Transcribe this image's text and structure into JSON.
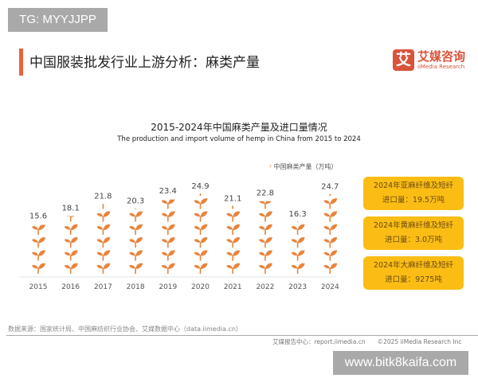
{
  "watermark_top": "TG: MYYJJPP",
  "page_title": "中国服装批发行业上游分析：麻类产量",
  "logo": {
    "mark": "艾",
    "cn": "艾媒咨询",
    "en": "iiMedia Research"
  },
  "chart_data": {
    "type": "bar",
    "title": "2015-2024年中国麻类产量及进口量情况",
    "subtitle": "The production and import volume of hemp in China from 2015 to 2024",
    "categories": [
      "2015",
      "2016",
      "2017",
      "2018",
      "2019",
      "2020",
      "2021",
      "2022",
      "2023",
      "2024"
    ],
    "series": [
      {
        "name": "中国麻类产量（万吨）",
        "values": [
          15.6,
          18.1,
          21.8,
          20.3,
          23.4,
          24.9,
          21.1,
          22.8,
          16.3,
          24.7
        ]
      }
    ],
    "units_per_icon": 4,
    "legend_position": "top-right",
    "color": "#e8843c"
  },
  "callouts": [
    {
      "line1": "2024年亚麻纤维及短纤",
      "line2": "进口量：19.5万吨"
    },
    {
      "line1": "2024年黄麻纤维及短纤",
      "line2": "进口量：3.0万吨"
    },
    {
      "line1": "2024年大麻纤维及短纤",
      "line2": "进口量：9275吨"
    }
  ],
  "source": "数据来源：国家统计局、中国麻纺织行业协会、艾媒数据中心（data.iimedia.cn）",
  "footer": "艾媒报告中心：report.iimedia.cn　　©2025  iiMedia Research  Inc",
  "watermark_bottom": "www.bitk8kaifa.com"
}
